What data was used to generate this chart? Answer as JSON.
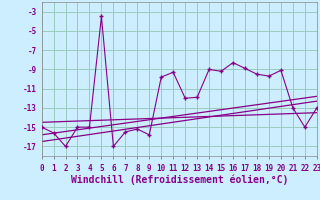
{
  "xlabel": "Windchill (Refroidissement éolien,°C)",
  "background_color": "#cceeff",
  "line_color": "#880088",
  "grid_color": "#99ccbb",
  "ylim": [
    -18,
    -2
  ],
  "xlim": [
    0,
    23
  ],
  "yticks": [
    -3,
    -5,
    -7,
    -9,
    -11,
    -13,
    -15,
    -17
  ],
  "xticks": [
    0,
    1,
    2,
    3,
    4,
    5,
    6,
    7,
    8,
    9,
    10,
    11,
    12,
    13,
    14,
    15,
    16,
    17,
    18,
    19,
    20,
    21,
    22,
    23
  ],
  "hours": [
    0,
    1,
    2,
    3,
    4,
    5,
    6,
    7,
    8,
    9,
    10,
    11,
    12,
    13,
    14,
    15,
    16,
    17,
    18,
    19,
    20,
    21,
    22,
    23
  ],
  "main_data": [
    -15.0,
    -15.6,
    -17.0,
    -15.0,
    -15.0,
    -3.5,
    -17.0,
    -15.5,
    -15.2,
    -15.8,
    -9.8,
    -9.3,
    -12.0,
    -11.9,
    -9.0,
    -9.2,
    -8.3,
    -8.9,
    -9.5,
    -9.7,
    -9.1,
    -13.0,
    -15.0,
    -13.0
  ],
  "trend1_x": [
    0,
    23
  ],
  "trend1_y": [
    -15.8,
    -11.8
  ],
  "trend2_x": [
    0,
    23
  ],
  "trend2_y": [
    -16.5,
    -12.3
  ],
  "trend3_x": [
    0,
    23
  ],
  "trend3_y": [
    -14.5,
    -13.5
  ],
  "tick_fontsize": 5.5,
  "xlabel_fontsize": 7.0
}
